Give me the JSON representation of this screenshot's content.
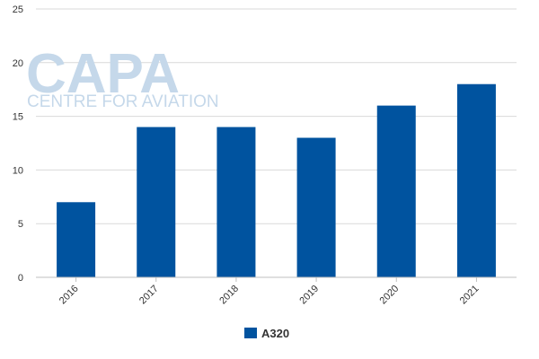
{
  "watermark": {
    "logo_text": "CAPA",
    "tagline": "CENTRE FOR AVIATION"
  },
  "colors": {
    "bar": "#00539f",
    "grid": "#d9d9d9",
    "axis": "#bfbfbf",
    "watermark": "#c5d8ea"
  },
  "chart_data": {
    "type": "bar",
    "categories": [
      "2016",
      "2017",
      "2018",
      "2019",
      "2020",
      "2021"
    ],
    "series": [
      {
        "name": "A320",
        "values": [
          7,
          14,
          14,
          13,
          16,
          18
        ]
      }
    ],
    "ylim": [
      0,
      25
    ],
    "yticks": [
      0,
      5,
      10,
      15,
      20,
      25
    ],
    "grid": true,
    "legend": "bottom-center",
    "title": "",
    "xlabel": "",
    "ylabel": ""
  }
}
